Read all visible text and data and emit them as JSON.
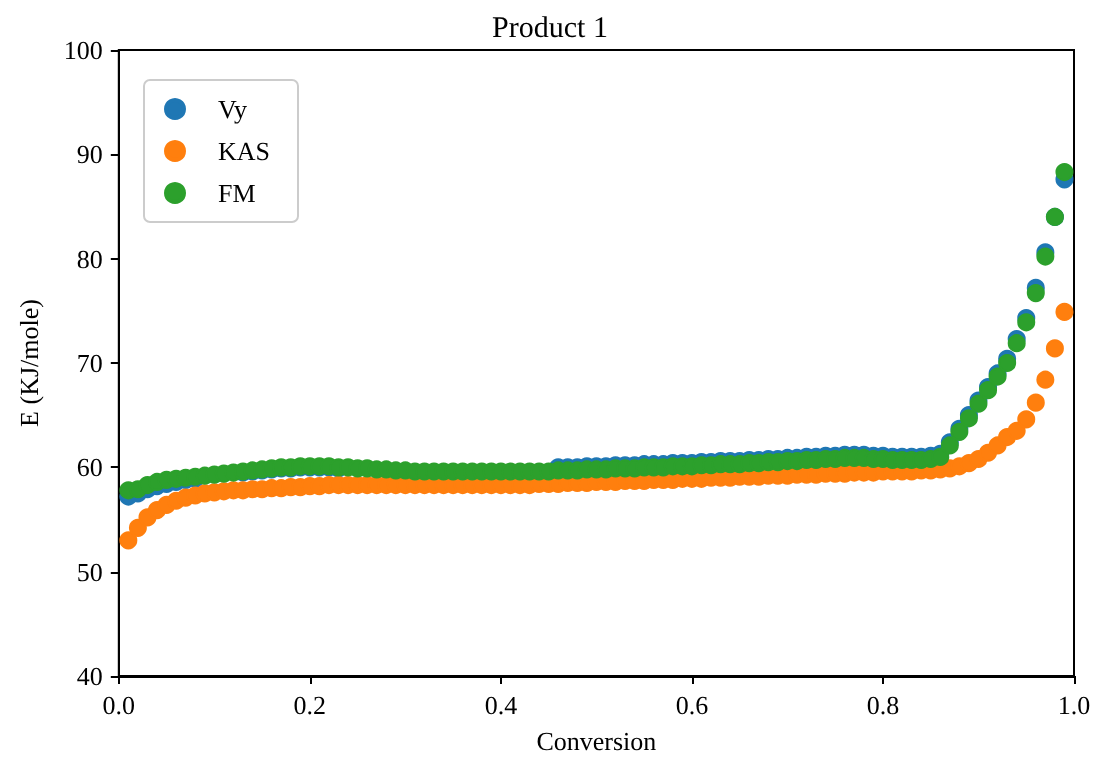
{
  "chart_data": {
    "type": "scatter",
    "title": "Product 1",
    "xlabel": "Conversion",
    "ylabel": "E (KJ/mole)",
    "x": [
      0.01,
      0.02,
      0.03,
      0.04,
      0.05,
      0.06,
      0.07,
      0.08,
      0.09,
      0.1,
      0.11,
      0.12,
      0.13,
      0.14,
      0.15,
      0.16,
      0.17,
      0.18,
      0.19,
      0.2,
      0.21,
      0.22,
      0.23,
      0.24,
      0.25,
      0.26,
      0.27,
      0.28,
      0.29,
      0.3,
      0.31,
      0.32,
      0.33,
      0.34,
      0.35,
      0.36,
      0.37,
      0.38,
      0.39,
      0.4,
      0.41,
      0.42,
      0.43,
      0.44,
      0.45,
      0.46,
      0.47,
      0.48,
      0.49,
      0.5,
      0.51,
      0.52,
      0.53,
      0.54,
      0.55,
      0.56,
      0.57,
      0.58,
      0.59,
      0.6,
      0.61,
      0.62,
      0.63,
      0.64,
      0.65,
      0.66,
      0.67,
      0.68,
      0.69,
      0.7,
      0.71,
      0.72,
      0.73,
      0.74,
      0.75,
      0.76,
      0.77,
      0.78,
      0.79,
      0.8,
      0.81,
      0.82,
      0.83,
      0.84,
      0.85,
      0.86,
      0.87,
      0.88,
      0.89,
      0.9,
      0.91,
      0.92,
      0.93,
      0.94,
      0.95,
      0.96,
      0.97,
      0.98,
      0.99
    ],
    "series": [
      {
        "name": "Vy",
        "color": "#1f77b4",
        "values": [
          57.2,
          57.5,
          57.9,
          58.2,
          58.4,
          58.6,
          58.8,
          58.9,
          null,
          null,
          null,
          null,
          59.5,
          59.6,
          59.7,
          59.8,
          59.9,
          59.9,
          60.0,
          60.0,
          60.0,
          60.0,
          59.9,
          null,
          null,
          null,
          null,
          null,
          null,
          null,
          null,
          null,
          null,
          null,
          null,
          null,
          null,
          null,
          null,
          null,
          null,
          null,
          null,
          null,
          null,
          60.0,
          60.0,
          60.0,
          60.1,
          60.1,
          60.1,
          60.2,
          60.2,
          60.2,
          60.3,
          60.3,
          60.3,
          60.4,
          60.4,
          60.4,
          60.5,
          60.5,
          60.6,
          60.6,
          60.6,
          60.7,
          60.7,
          60.8,
          60.8,
          60.9,
          60.9,
          61.0,
          61.0,
          61.1,
          61.1,
          61.2,
          61.2,
          61.2,
          61.1,
          61.1,
          61.0,
          61.0,
          61.0,
          61.0,
          61.1,
          61.3,
          62.4,
          63.7,
          65.0,
          66.4,
          67.7,
          69.0,
          70.4,
          72.3,
          74.3,
          77.2,
          80.6,
          84.0,
          87.6
        ]
      },
      {
        "name": "KAS",
        "color": "#ff7f0e",
        "values": [
          53.0,
          54.2,
          55.2,
          55.9,
          56.4,
          56.8,
          57.1,
          57.3,
          57.5,
          57.6,
          57.7,
          57.8,
          57.8,
          57.9,
          57.9,
          58.0,
          58.0,
          58.1,
          58.1,
          58.2,
          58.2,
          58.3,
          58.3,
          58.3,
          58.3,
          58.3,
          58.3,
          58.3,
          58.3,
          58.3,
          58.3,
          58.3,
          58.3,
          58.3,
          58.3,
          58.3,
          58.3,
          58.3,
          58.3,
          58.3,
          58.3,
          58.3,
          58.3,
          58.4,
          58.4,
          58.4,
          58.5,
          58.5,
          58.5,
          58.6,
          58.6,
          58.6,
          58.7,
          58.7,
          58.7,
          58.8,
          58.8,
          58.8,
          58.9,
          58.9,
          58.9,
          59.0,
          59.0,
          59.0,
          59.1,
          59.1,
          59.1,
          59.2,
          59.2,
          59.2,
          59.3,
          59.3,
          59.3,
          59.4,
          59.4,
          59.4,
          59.5,
          59.5,
          59.5,
          59.6,
          59.6,
          59.6,
          59.6,
          59.7,
          59.7,
          59.8,
          59.9,
          60.1,
          60.4,
          60.8,
          61.4,
          62.1,
          62.9,
          63.5,
          64.6,
          66.2,
          68.4,
          71.4,
          74.9
        ]
      },
      {
        "name": "FM",
        "color": "#2ca02c",
        "values": [
          57.8,
          57.9,
          58.3,
          58.6,
          58.8,
          58.9,
          59.0,
          59.1,
          59.2,
          59.3,
          59.4,
          59.5,
          59.6,
          59.7,
          59.8,
          59.9,
          60.0,
          60.0,
          60.1,
          60.1,
          60.1,
          60.1,
          60.0,
          60.0,
          59.9,
          59.9,
          59.8,
          59.8,
          59.7,
          59.7,
          59.6,
          59.6,
          59.6,
          59.6,
          59.6,
          59.6,
          59.6,
          59.6,
          59.6,
          59.6,
          59.6,
          59.6,
          59.6,
          59.6,
          59.6,
          59.7,
          59.7,
          59.7,
          59.8,
          59.8,
          59.8,
          59.9,
          59.9,
          59.9,
          60.0,
          60.0,
          60.0,
          60.1,
          60.1,
          60.1,
          60.2,
          60.2,
          60.3,
          60.3,
          60.3,
          60.4,
          60.4,
          60.5,
          60.5,
          60.6,
          60.6,
          60.7,
          60.7,
          60.8,
          60.8,
          60.9,
          60.9,
          60.9,
          60.8,
          60.8,
          60.7,
          60.7,
          60.7,
          60.7,
          60.8,
          61.0,
          62.1,
          63.4,
          64.7,
          66.1,
          67.4,
          68.7,
          70.0,
          71.9,
          73.9,
          76.7,
          80.2,
          84.0,
          88.3
        ]
      }
    ],
    "xlim": [
      0,
      1
    ],
    "xticks": [
      {
        "value": 0,
        "label": "0.0"
      },
      {
        "value": 0.2,
        "label": "0.2"
      },
      {
        "value": 0.4,
        "label": "0.4"
      },
      {
        "value": 0.6,
        "label": "0.6"
      },
      {
        "value": 0.8,
        "label": "0.8"
      },
      {
        "value": 1,
        "label": "1.0"
      }
    ],
    "ylim": [
      40,
      100
    ],
    "yticks": [
      40,
      50,
      60,
      70,
      80,
      90,
      100
    ],
    "legend": "top left",
    "marker": "circle",
    "grid": false
  }
}
